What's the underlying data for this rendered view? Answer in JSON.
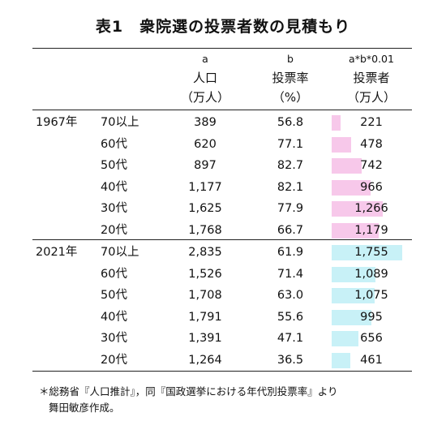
{
  "title": "表1　衆院選の投票者数の見積もり",
  "headers": {
    "col_a": {
      "letter": "a",
      "name": "人口",
      "unit": "（万人）"
    },
    "col_b": {
      "letter": "b",
      "name": "投票率",
      "unit": "（%）"
    },
    "col_c": {
      "letter": "a*b*0.01",
      "name": "投票者",
      "unit": "（万人）"
    }
  },
  "colors": {
    "bar_1967": "#f7c8ea",
    "bar_2021": "#c8f1f7"
  },
  "groups": [
    {
      "year": "1967年",
      "rows": [
        {
          "age": "70以上",
          "pop": "389",
          "rate": "56.8",
          "voters": "221",
          "voters_value": 221
        },
        {
          "age": "60代",
          "pop": "620",
          "rate": "77.1",
          "voters": "478",
          "voters_value": 478
        },
        {
          "age": "50代",
          "pop": "897",
          "rate": "82.7",
          "voters": "742",
          "voters_value": 742
        },
        {
          "age": "40代",
          "pop": "1,177",
          "rate": "82.1",
          "voters": "966",
          "voters_value": 966
        },
        {
          "age": "30代",
          "pop": "1,625",
          "rate": "77.9",
          "voters": "1,266",
          "voters_value": 1266
        },
        {
          "age": "20代",
          "pop": "1,768",
          "rate": "66.7",
          "voters": "1,179",
          "voters_value": 1179
        }
      ]
    },
    {
      "year": "2021年",
      "rows": [
        {
          "age": "70以上",
          "pop": "2,835",
          "rate": "61.9",
          "voters": "1,755",
          "voters_value": 1755
        },
        {
          "age": "60代",
          "pop": "1,526",
          "rate": "71.4",
          "voters": "1,089",
          "voters_value": 1089
        },
        {
          "age": "50代",
          "pop": "1,708",
          "rate": "63.0",
          "voters": "1,075",
          "voters_value": 1075
        },
        {
          "age": "40代",
          "pop": "1,791",
          "rate": "55.6",
          "voters": "995",
          "voters_value": 995
        },
        {
          "age": "30代",
          "pop": "1,391",
          "rate": "47.1",
          "voters": "656",
          "voters_value": 656
        },
        {
          "age": "20代",
          "pop": "1,264",
          "rate": "36.5",
          "voters": "461",
          "voters_value": 461
        }
      ]
    }
  ],
  "notes": [
    "＊総務省『人口推計』，同『国政選挙における年代別投票率』より",
    "舞田敏彦作成。"
  ]
}
